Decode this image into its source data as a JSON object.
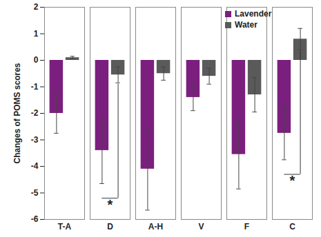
{
  "chart_data": {
    "type": "bar",
    "y_label": "Changes of POMS scores",
    "categories": [
      "T-A",
      "D",
      "A-H",
      "V",
      "F",
      "C"
    ],
    "series": [
      {
        "name": "Lavender",
        "color": "#7b1f7e",
        "values": [
          -2.0,
          -3.4,
          -4.1,
          -1.4,
          -3.55,
          -2.75
        ],
        "errors": [
          0.75,
          1.25,
          1.55,
          0.5,
          1.3,
          1.0
        ]
      },
      {
        "name": "Water",
        "color": "#5a5a5a",
        "values": [
          0.1,
          -0.55,
          -0.5,
          -0.6,
          -1.3,
          0.8
        ],
        "errors": [
          0.05,
          0.3,
          0.25,
          0.3,
          0.65,
          0.4
        ]
      }
    ],
    "ylim": [
      -6,
      2
    ],
    "yticks": [
      -6,
      -5,
      -4,
      -3,
      -2,
      -1,
      0,
      1,
      2
    ],
    "legend": "top-right",
    "annotations": [
      {
        "text": "*",
        "category": "D"
      },
      {
        "text": "*",
        "category": "C"
      }
    ]
  }
}
